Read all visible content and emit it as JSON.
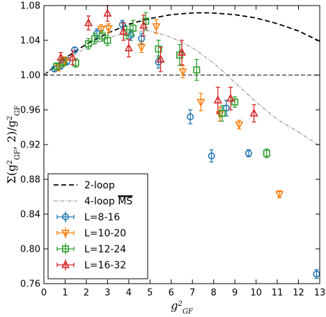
{
  "chart_data": {
    "type": "scatter",
    "xlabel": "g²_GF",
    "ylabel": "Σ(g²_GF, 2)/g²_GF",
    "xlim": [
      0,
      13
    ],
    "ylim": [
      0.76,
      1.08
    ],
    "xticks": [
      0,
      1,
      2,
      3,
      4,
      5,
      6,
      7,
      8,
      9,
      10,
      11,
      12,
      13
    ],
    "yticks": [
      0.76,
      0.8,
      0.84,
      0.88,
      0.92,
      0.96,
      1.0,
      1.04,
      1.08
    ],
    "xtick_labels": [
      "0",
      "1",
      "2",
      "3",
      "4",
      "5",
      "6",
      "7",
      "8",
      "9",
      "10",
      "11",
      "12",
      "13"
    ],
    "ytick_labels": [
      "0.76",
      "0.80",
      "0.84",
      "0.88",
      "0.92",
      "0.96",
      "1.00",
      "1.04",
      "1.08"
    ],
    "legend_position": "bottom-left",
    "reference_line": {
      "y": 1.0,
      "color": "#555555"
    },
    "curves": [
      {
        "name": "2-loop",
        "style": "dashed",
        "color": "#000000",
        "x": [
          0,
          1,
          2,
          3,
          4,
          5,
          6,
          7,
          7.6,
          8,
          9,
          10,
          11,
          12,
          13
        ],
        "y": [
          1.0,
          1.0195,
          1.0356,
          1.0481,
          1.0586,
          1.0651,
          1.0695,
          1.0715,
          1.0717,
          1.0714,
          1.0695,
          1.0657,
          1.0592,
          1.0508,
          1.0389
        ]
      },
      {
        "name": "4-loop MS",
        "name_overline": "MS",
        "style": "dashdot",
        "color": "#999999",
        "x": [
          0,
          1,
          2,
          3,
          4,
          5,
          6,
          7,
          8,
          9,
          10,
          11,
          12,
          13
        ],
        "y": [
          1.0,
          1.0175,
          1.0315,
          1.0425,
          1.05,
          1.051,
          1.0435,
          1.0315,
          1.014,
          0.9915,
          0.969,
          0.949,
          0.9345,
          0.9185
        ]
      }
    ],
    "series": [
      {
        "name": "L=8-16",
        "marker": "circle",
        "color": "#1f77b4",
        "points": [
          {
            "x": 0.5,
            "y": 1.007,
            "err": 0.003
          },
          {
            "x": 0.8,
            "y": 1.011,
            "err": 0.004
          },
          {
            "x": 1.1,
            "y": 1.016,
            "err": 0.004
          },
          {
            "x": 1.45,
            "y": 1.029,
            "err": 0.003
          },
          {
            "x": 2.5,
            "y": 1.048,
            "err": 0.005
          },
          {
            "x": 3.7,
            "y": 1.058,
            "err": 0.005
          },
          {
            "x": 4.1,
            "y": 1.046,
            "err": 0.006
          },
          {
            "x": 4.6,
            "y": 1.042,
            "err": 0.006
          },
          {
            "x": 5.4,
            "y": 1.015,
            "err": 0.007
          },
          {
            "x": 6.9,
            "y": 0.952,
            "err": 0.008
          },
          {
            "x": 7.9,
            "y": 0.907,
            "err": 0.007
          },
          {
            "x": 8.6,
            "y": 0.962,
            "err": 0.009
          },
          {
            "x": 9.65,
            "y": 0.91,
            "err": 0.004
          },
          {
            "x": 12.85,
            "y": 0.771,
            "err": 0.005
          }
        ]
      },
      {
        "name": "L=10-20",
        "marker": "triangle-down",
        "color": "#ff7f0e",
        "points": [
          {
            "x": 0.7,
            "y": 1.009,
            "err": 0.004
          },
          {
            "x": 1.0,
            "y": 1.016,
            "err": 0.005
          },
          {
            "x": 2.7,
            "y": 1.053,
            "err": 0.005
          },
          {
            "x": 3.05,
            "y": 1.054,
            "err": 0.005
          },
          {
            "x": 4.6,
            "y": 1.032,
            "err": 0.006
          },
          {
            "x": 5.3,
            "y": 1.056,
            "err": 0.008
          },
          {
            "x": 6.55,
            "y": 1.004,
            "err": 0.007
          },
          {
            "x": 7.4,
            "y": 0.969,
            "err": 0.01
          },
          {
            "x": 8.3,
            "y": 0.955,
            "err": 0.008
          },
          {
            "x": 9.2,
            "y": 0.943,
            "err": 0.005
          },
          {
            "x": 11.1,
            "y": 0.863,
            "err": 0.004
          }
        ]
      },
      {
        "name": "L=12-24",
        "marker": "square",
        "color": "#2ca02c",
        "points": [
          {
            "x": 0.6,
            "y": 1.01,
            "err": 0.004
          },
          {
            "x": 0.9,
            "y": 1.015,
            "err": 0.005
          },
          {
            "x": 1.5,
            "y": 1.014,
            "err": 0.005
          },
          {
            "x": 2.1,
            "y": 1.036,
            "err": 0.006
          },
          {
            "x": 2.4,
            "y": 1.042,
            "err": 0.006
          },
          {
            "x": 2.75,
            "y": 1.045,
            "err": 0.006
          },
          {
            "x": 3.0,
            "y": 1.04,
            "err": 0.006
          },
          {
            "x": 3.9,
            "y": 1.049,
            "err": 0.007
          },
          {
            "x": 4.2,
            "y": 1.054,
            "err": 0.009
          },
          {
            "x": 4.8,
            "y": 1.062,
            "err": 0.01
          },
          {
            "x": 5.4,
            "y": 1.03,
            "err": 0.01
          },
          {
            "x": 6.4,
            "y": 1.023,
            "err": 0.012
          },
          {
            "x": 7.2,
            "y": 1.006,
            "err": 0.012
          },
          {
            "x": 8.4,
            "y": 0.956,
            "err": 0.009
          },
          {
            "x": 9.0,
            "y": 0.969,
            "err": 0.006
          },
          {
            "x": 10.5,
            "y": 0.91,
            "err": 0.005
          }
        ]
      },
      {
        "name": "L=16-32",
        "marker": "triangle-up",
        "color": "#d62728",
        "points": [
          {
            "x": 0.8,
            "y": 1.02,
            "err": 0.006
          },
          {
            "x": 1.35,
            "y": 1.02,
            "err": 0.008
          },
          {
            "x": 2.1,
            "y": 1.06,
            "err": 0.008
          },
          {
            "x": 3.0,
            "y": 1.071,
            "err": 0.009
          },
          {
            "x": 3.75,
            "y": 1.05,
            "err": 0.01
          },
          {
            "x": 4.0,
            "y": 1.031,
            "err": 0.01
          },
          {
            "x": 4.7,
            "y": 1.057,
            "err": 0.012
          },
          {
            "x": 5.5,
            "y": 1.018,
            "err": 0.014
          },
          {
            "x": 6.5,
            "y": 1.026,
            "err": 0.014
          },
          {
            "x": 8.2,
            "y": 0.971,
            "err": 0.015
          },
          {
            "x": 8.8,
            "y": 0.973,
            "err": 0.013
          },
          {
            "x": 9.9,
            "y": 0.956,
            "err": 0.01
          }
        ]
      }
    ]
  }
}
